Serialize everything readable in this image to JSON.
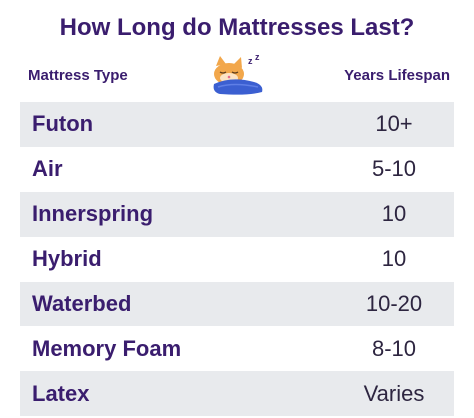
{
  "header": {
    "title": "How Long do Mattresses Last?",
    "col_type": "Mattress Type",
    "col_years": "Years Lifespan"
  },
  "icons": {
    "mascot": "sleeping-cat-icon"
  },
  "colors": {
    "heading": "#3a1d6e",
    "row_shade": "#e8eaed",
    "blanket": "#3b5fd1",
    "cat": "#f2a74b"
  },
  "rows": [
    {
      "type": "Futon",
      "years": "10+"
    },
    {
      "type": "Air",
      "years": "5-10"
    },
    {
      "type": "Innerspring",
      "years": "10"
    },
    {
      "type": "Hybrid",
      "years": "10"
    },
    {
      "type": "Waterbed",
      "years": "10-20"
    },
    {
      "type": "Memory Foam",
      "years": "8-10"
    },
    {
      "type": "Latex",
      "years": "Varies"
    }
  ]
}
